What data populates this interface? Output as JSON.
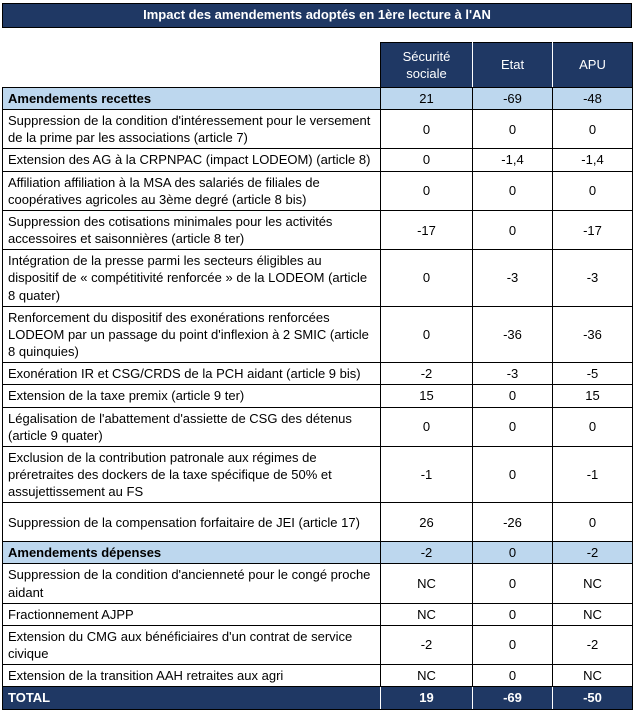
{
  "title": "Impact des amendements adoptés en 1ère lecture à l'AN",
  "table": {
    "columns": [
      "Sécurité sociale",
      "Etat",
      "APU"
    ],
    "rows": [
      {
        "label": "Amendements recettes",
        "type": "section",
        "values": [
          "21",
          "-69",
          "-48"
        ]
      },
      {
        "label": "Suppression de la condition d'intéressement pour le versement de la prime par les associations (article 7)",
        "type": "normal",
        "values": [
          "0",
          "0",
          "0"
        ]
      },
      {
        "label": "Extension des AG à la CRPNPAC (impact LODEOM) (article 8)",
        "type": "normal",
        "values": [
          "0",
          "-1,4",
          "-1,4"
        ]
      },
      {
        "label": "Affiliation affiliation à la MSA des salariés de filiales de coopératives agricoles au 3ème degré (article 8 bis)",
        "type": "normal",
        "values": [
          "0",
          "0",
          "0"
        ]
      },
      {
        "label": "Suppression des cotisations minimales pour les activités accessoires et saisonnières (article 8 ter)",
        "type": "normal",
        "values": [
          "-17",
          "0",
          "-17"
        ]
      },
      {
        "label": "Intégration de la presse parmi les secteurs éligibles au dispositif de « compétitivité renforcée » de la LODEOM (article 8 quater)",
        "type": "normal",
        "values": [
          "0",
          "-3",
          "-3"
        ]
      },
      {
        "label": "Renforcement du dispositif des exonérations renforcées LODEOM par un passage du point d'inflexion à 2 SMIC (article 8 quinquies)",
        "type": "normal",
        "values": [
          "0",
          "-36",
          "-36"
        ]
      },
      {
        "label": "Exonération IR et CSG/CRDS de la PCH aidant (article 9 bis)",
        "type": "normal",
        "values": [
          "-2",
          "-3",
          "-5"
        ]
      },
      {
        "label": "Extension de la taxe premix (article 9 ter)",
        "type": "normal",
        "values": [
          "15",
          "0",
          "15"
        ]
      },
      {
        "label": "Légalisation de l'abattement d'assiette de CSG des détenus (article 9 quater)",
        "type": "normal",
        "values": [
          "0",
          "0",
          "0"
        ]
      },
      {
        "label": "Exclusion de la contribution patronale aux régimes de préretraites des dockers de la taxe spécifique de 50% et assujettissement au FS",
        "type": "normal",
        "values": [
          "-1",
          "0",
          "-1"
        ]
      },
      {
        "label": "Suppression de la compensation forfaitaire de JEI (article 17)",
        "type": "normal",
        "tall": true,
        "values": [
          "26",
          "-26",
          "0"
        ]
      },
      {
        "label": "Amendements dépenses",
        "type": "section",
        "values": [
          "-2",
          "0",
          "-2"
        ]
      },
      {
        "label": "Suppression de la condition d'ancienneté pour le congé proche aidant",
        "type": "normal",
        "values": [
          "NC",
          "0",
          "NC"
        ]
      },
      {
        "label": "Fractionnement AJPP",
        "type": "normal",
        "values": [
          "NC",
          "0",
          "NC"
        ]
      },
      {
        "label": "Extension du CMG aux bénéficiaires d'un contrat de service civique",
        "type": "normal",
        "values": [
          "-2",
          "0",
          "-2"
        ]
      },
      {
        "label": "Extension de la transition AAH retraites aux agri",
        "type": "normal",
        "values": [
          "NC",
          "0",
          "NC"
        ]
      },
      {
        "label": "TOTAL",
        "type": "total",
        "values": [
          "19",
          "-69",
          "-50"
        ]
      }
    ]
  },
  "colors": {
    "header_bg": "#1F3864",
    "header_text": "#FFFFFF",
    "section_bg": "#BDD7EE",
    "border": "#000000"
  }
}
